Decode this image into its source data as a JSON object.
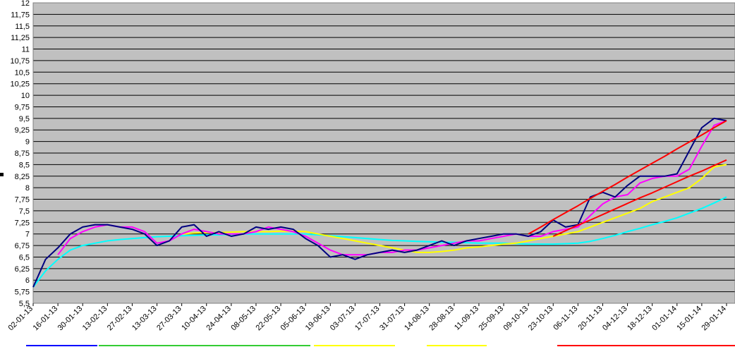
{
  "chart_data": {
    "type": "line",
    "categories": [
      "02-01-13",
      null,
      "16-01-13",
      null,
      "30-01-13",
      null,
      "13-02-13",
      null,
      "27-02-13",
      null,
      "13-03-13",
      null,
      "27-03-13",
      null,
      "10-04-13",
      null,
      "24-04-13",
      null,
      "08-05-13",
      null,
      "22-05-13",
      null,
      "05-06-13",
      null,
      "19-06-13",
      null,
      "03-07-13",
      null,
      "17-07-13",
      null,
      "31-07-13",
      null,
      "14-08-13",
      null,
      "28-08-13",
      null,
      "11-09-13",
      null,
      "25-09-13",
      null,
      "09-10-13",
      null,
      "23-10-13",
      null,
      "06-11-13",
      null,
      "20-11-13",
      null,
      "04-12-13",
      null,
      "18-12-13",
      null,
      "01-01-14",
      null,
      "15-01-14",
      null,
      "29-01-14"
    ],
    "series": [
      {
        "color": "#00ffff",
        "values": [
          5.85,
          6.2,
          6.45,
          6.65,
          6.75,
          6.8,
          6.85,
          6.88,
          6.9,
          6.92,
          6.94,
          6.95,
          6.96,
          6.97,
          6.98,
          6.98,
          6.99,
          7.0,
          7.0,
          7.0,
          7.0,
          7.0,
          7.0,
          6.98,
          6.96,
          6.94,
          6.92,
          6.9,
          6.88,
          6.86,
          6.85,
          6.84,
          6.83,
          6.82,
          6.82,
          6.81,
          6.8,
          6.8,
          6.8,
          6.79,
          6.78,
          6.78,
          6.78,
          6.79,
          6.8,
          6.84,
          6.9,
          6.97,
          7.05,
          7.12,
          7.2,
          7.27,
          7.35,
          7.45,
          7.55,
          7.67,
          7.8
        ]
      },
      {
        "color": "#ffff00",
        "values": [
          null,
          null,
          null,
          null,
          null,
          null,
          null,
          null,
          null,
          null,
          null,
          null,
          7.0,
          7.02,
          7.03,
          7.03,
          7.04,
          7.05,
          7.05,
          7.05,
          7.06,
          7.06,
          7.05,
          7.0,
          6.95,
          6.9,
          6.85,
          6.8,
          6.75,
          6.7,
          6.65,
          6.6,
          6.6,
          6.62,
          6.65,
          6.7,
          6.72,
          6.75,
          6.78,
          6.8,
          6.85,
          6.9,
          6.95,
          7.0,
          7.05,
          7.15,
          7.25,
          7.35,
          7.45,
          7.55,
          7.7,
          7.8,
          7.9,
          8.0,
          8.2,
          8.45,
          8.5
        ]
      },
      {
        "color": "#ff00ff",
        "values": [
          null,
          null,
          6.55,
          6.9,
          7.05,
          7.15,
          7.2,
          7.15,
          7.15,
          7.05,
          6.8,
          6.85,
          7.0,
          7.1,
          7.05,
          7.0,
          7.0,
          7.0,
          7.05,
          7.15,
          7.1,
          7.05,
          6.95,
          6.8,
          6.65,
          6.55,
          6.55,
          6.55,
          6.6,
          6.6,
          6.65,
          6.65,
          6.7,
          6.75,
          6.8,
          6.85,
          6.85,
          6.9,
          6.95,
          7.0,
          6.95,
          6.95,
          7.05,
          7.1,
          7.15,
          7.4,
          7.65,
          7.8,
          7.85,
          8.1,
          8.2,
          8.25,
          8.25,
          8.4,
          8.9,
          9.35,
          9.45
        ]
      },
      {
        "color": "#000080",
        "values": [
          5.85,
          6.45,
          6.7,
          7.0,
          7.15,
          7.2,
          7.2,
          7.15,
          7.1,
          7.0,
          6.75,
          6.85,
          7.15,
          7.2,
          6.95,
          7.05,
          6.95,
          7.0,
          7.15,
          7.1,
          7.15,
          7.1,
          6.9,
          6.75,
          6.5,
          6.55,
          6.45,
          6.55,
          6.6,
          6.65,
          6.6,
          6.65,
          6.75,
          6.85,
          6.75,
          6.85,
          6.9,
          6.95,
          7.0,
          7.0,
          6.95,
          7.05,
          7.3,
          7.15,
          7.2,
          7.8,
          7.9,
          7.8,
          8.05,
          8.25,
          8.25,
          8.25,
          8.3,
          8.8,
          9.3,
          9.5,
          9.45
        ]
      },
      {
        "color": "#ff0000",
        "values": [
          null,
          null,
          null,
          null,
          null,
          null,
          null,
          null,
          null,
          null,
          null,
          null,
          null,
          null,
          null,
          null,
          null,
          null,
          null,
          null,
          null,
          null,
          null,
          null,
          null,
          null,
          null,
          null,
          null,
          null,
          null,
          null,
          null,
          null,
          null,
          null,
          null,
          null,
          null,
          null,
          7.0,
          7.15,
          7.31,
          7.46,
          7.61,
          7.77,
          7.92,
          8.07,
          8.23,
          8.38,
          8.53,
          8.68,
          8.84,
          8.99,
          9.14,
          9.3,
          9.45
        ]
      },
      {
        "color": "#ff0000",
        "values": [
          null,
          null,
          null,
          null,
          null,
          null,
          null,
          null,
          null,
          null,
          null,
          null,
          null,
          null,
          null,
          null,
          null,
          null,
          null,
          null,
          null,
          null,
          null,
          null,
          null,
          null,
          null,
          null,
          null,
          null,
          null,
          null,
          null,
          null,
          null,
          null,
          null,
          null,
          null,
          null,
          null,
          null,
          6.95,
          7.07,
          7.19,
          7.3,
          7.42,
          7.54,
          7.66,
          7.78,
          7.89,
          8.01,
          8.13,
          8.25,
          8.36,
          8.48,
          8.6
        ]
      }
    ],
    "ylim": [
      5.5,
      12
    ],
    "yticks": [
      {
        "value": 5.5,
        "label": "5,5"
      },
      {
        "value": 5.75,
        "label": "5,75"
      },
      6,
      {
        "value": 6.25,
        "label": "6,25"
      },
      {
        "value": 6.5,
        "label": "6,5"
      },
      {
        "value": 6.75,
        "label": "6,75"
      },
      7,
      {
        "value": 7.25,
        "label": "7,25"
      },
      {
        "value": 7.5,
        "label": "7,5"
      },
      {
        "value": 7.75,
        "label": "7,75"
      },
      8,
      {
        "value": 8.25,
        "label": "8,25"
      },
      {
        "value": 8.5,
        "label": "8,5"
      },
      {
        "value": 8.75,
        "label": "8,75"
      },
      9,
      {
        "value": 9.25,
        "label": "9,25"
      },
      {
        "value": 9.5,
        "label": "9,5"
      },
      {
        "value": 9.75,
        "label": "9,75"
      },
      10,
      {
        "value": 10.25,
        "label": "10,25"
      },
      {
        "value": 10.5,
        "label": "10,5"
      },
      {
        "value": 10.75,
        "label": "10,75"
      },
      11,
      {
        "value": 11.25,
        "label": "11,25"
      },
      {
        "value": 11.5,
        "label": "11,5"
      },
      {
        "value": 11.75,
        "label": "11,75"
      },
      12
    ],
    "grid": true
  }
}
